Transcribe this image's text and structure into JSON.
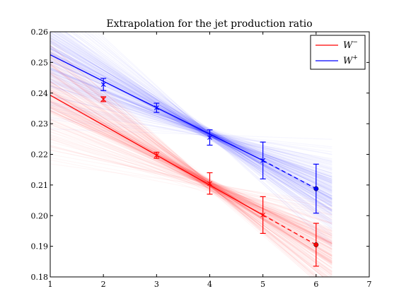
{
  "chart_data": {
    "type": "line",
    "title": "Extrapolation for the jet production ratio",
    "xlabel": "",
    "ylabel": "",
    "xlim": [
      1,
      7
    ],
    "ylim": [
      0.18,
      0.26
    ],
    "xticks": [
      "1",
      "2",
      "3",
      "4",
      "5",
      "6",
      "7"
    ],
    "yticks": [
      "0.18",
      "0.19",
      "0.20",
      "0.21",
      "0.22",
      "0.23",
      "0.24",
      "0.25",
      "0.26"
    ],
    "grid": false,
    "legend_position": "top-right",
    "series": [
      {
        "name": "W⁻",
        "color": "#ff0000",
        "fit_line": {
          "x": [
            1,
            5
          ],
          "y": [
            0.2393,
            0.2002
          ]
        },
        "extrapolation": {
          "x": [
            5,
            6
          ],
          "y": [
            0.2002,
            0.1905
          ]
        },
        "measurements": [
          {
            "x": 2,
            "y": 0.238,
            "err": 0.0008
          },
          {
            "x": 3,
            "y": 0.2197,
            "err": 0.001
          },
          {
            "x": 4,
            "y": 0.2105,
            "err": 0.0035
          },
          {
            "x": 5,
            "y": 0.2002,
            "err": 0.006
          }
        ],
        "extrapolated_point": {
          "x": 6,
          "y": 0.1905,
          "err": 0.007
        }
      },
      {
        "name": "W⁺",
        "color": "#0000ff",
        "fit_line": {
          "x": [
            1,
            5
          ],
          "y": [
            0.2525,
            0.218
          ]
        },
        "extrapolation": {
          "x": [
            5,
            6
          ],
          "y": [
            0.218,
            0.2088
          ]
        },
        "measurements": [
          {
            "x": 2,
            "y": 0.2428,
            "err": 0.002
          },
          {
            "x": 3,
            "y": 0.2352,
            "err": 0.0015
          },
          {
            "x": 4,
            "y": 0.2255,
            "err": 0.0025
          },
          {
            "x": 5,
            "y": 0.218,
            "err": 0.006
          }
        ],
        "extrapolated_point": {
          "x": 6,
          "y": 0.2088,
          "err": 0.008
        }
      }
    ]
  },
  "legend": {
    "w_minus": {
      "base": "W",
      "sup": "−"
    },
    "w_plus": {
      "base": "W",
      "sup": "+"
    }
  }
}
